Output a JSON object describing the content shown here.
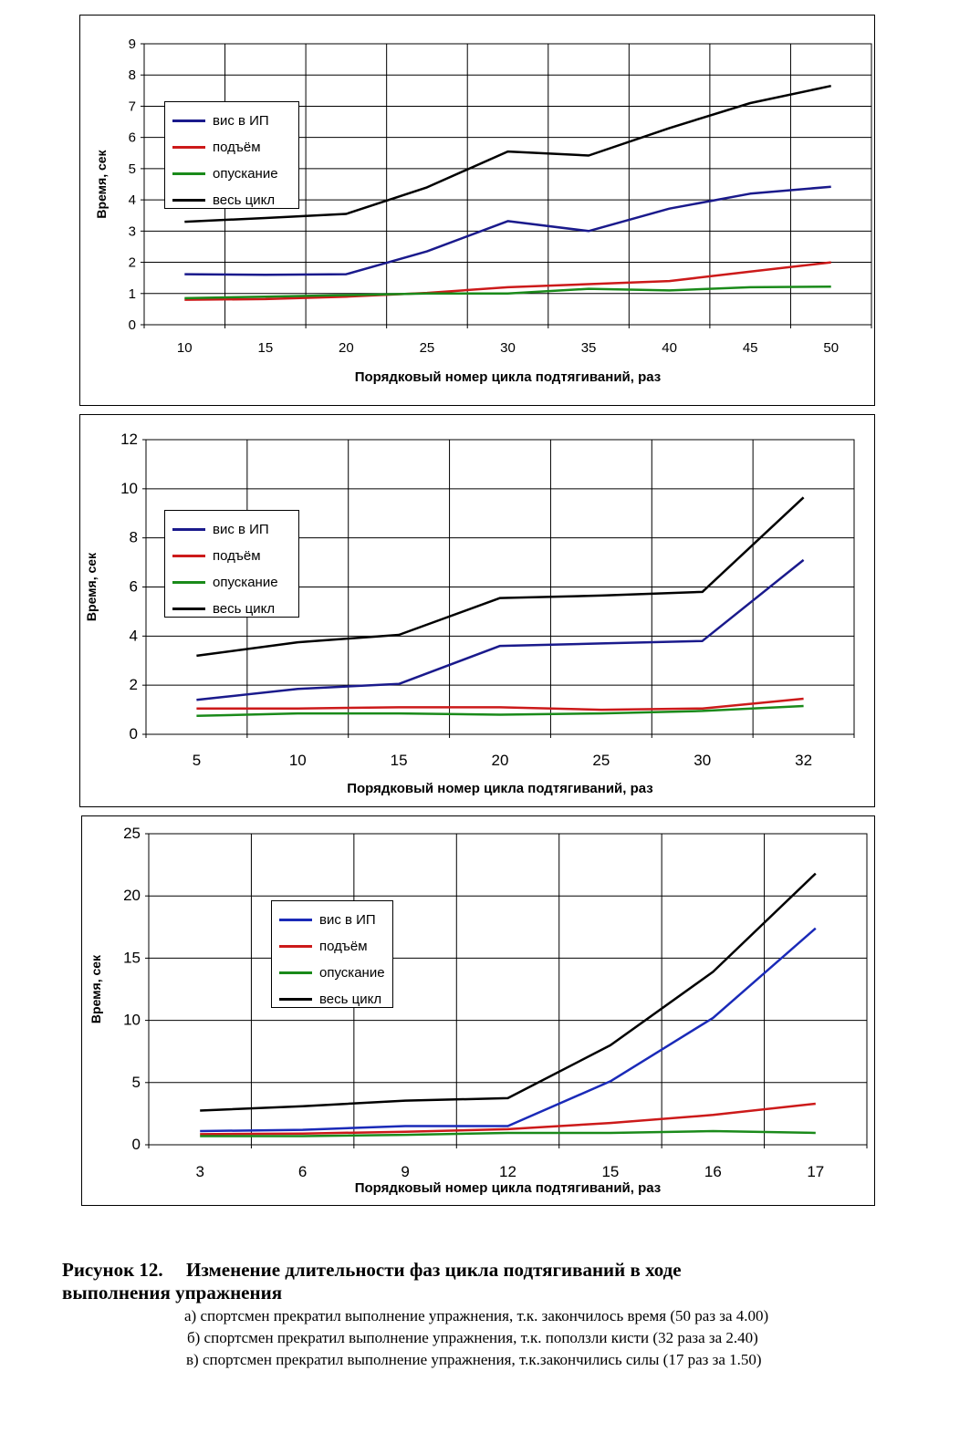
{
  "chart_data": [
    {
      "type": "line",
      "xlabel": "Порядковый номер цикла подтягиваний, раз",
      "ylabel": "Время, сек",
      "categories": [
        "10",
        "15",
        "20",
        "25",
        "30",
        "35",
        "40",
        "45",
        "50"
      ],
      "yticks": [
        "0",
        "1",
        "2",
        "3",
        "4",
        "5",
        "6",
        "7",
        "8",
        "9"
      ],
      "ylim": [
        0,
        9
      ],
      "grid": true,
      "legend": "top-left",
      "series": [
        {
          "name": "вис в ИП",
          "color": "#1a1a8c",
          "values": [
            1.62,
            1.6,
            1.62,
            2.35,
            3.32,
            3.0,
            3.72,
            4.2,
            4.42
          ]
        },
        {
          "name": "подъём",
          "color": "#cc1a1a",
          "values": [
            0.8,
            0.82,
            0.9,
            1.02,
            1.2,
            1.3,
            1.4,
            1.7,
            2.0
          ]
        },
        {
          "name": "опускание",
          "color": "#1a8a1a",
          "values": [
            0.85,
            0.9,
            0.95,
            1.0,
            1.0,
            1.15,
            1.1,
            1.2,
            1.22
          ]
        },
        {
          "name": "весь цикл",
          "color": "#000000",
          "values": [
            3.3,
            3.42,
            3.55,
            4.4,
            5.55,
            5.42,
            6.3,
            7.1,
            7.65
          ]
        }
      ]
    },
    {
      "type": "line",
      "xlabel": "Порядковый номер цикла подтягиваний, раз",
      "ylabel": "Время, сек",
      "categories": [
        "5",
        "10",
        "15",
        "20",
        "25",
        "30",
        "32"
      ],
      "yticks": [
        "0",
        "2",
        "4",
        "6",
        "8",
        "10",
        "12"
      ],
      "ylim": [
        0,
        12
      ],
      "grid": true,
      "legend": "top-left",
      "series": [
        {
          "name": "вис в ИП",
          "color": "#1a1a8c",
          "values": [
            1.4,
            1.85,
            2.05,
            3.6,
            3.7,
            3.8,
            7.1
          ]
        },
        {
          "name": "подъём",
          "color": "#cc1a1a",
          "values": [
            1.05,
            1.05,
            1.1,
            1.1,
            1.0,
            1.05,
            1.45
          ]
        },
        {
          "name": "опускание",
          "color": "#1a8a1a",
          "values": [
            0.75,
            0.85,
            0.85,
            0.8,
            0.85,
            0.95,
            1.15
          ]
        },
        {
          "name": "весь цикл",
          "color": "#000000",
          "values": [
            3.2,
            3.75,
            4.05,
            5.55,
            5.65,
            5.8,
            9.65
          ]
        }
      ]
    },
    {
      "type": "line",
      "xlabel": "Порядковый номер цикла подтягиваний, раз",
      "ylabel": "Время, сек",
      "categories": [
        "3",
        "6",
        "9",
        "12",
        "15",
        "16",
        "17"
      ],
      "yticks": [
        "0",
        "5",
        "10",
        "15",
        "20",
        "25"
      ],
      "ylim": [
        0,
        25
      ],
      "grid": true,
      "legend": "top-left",
      "series": [
        {
          "name": "вис в ИП",
          "color": "#1a2ab8",
          "values": [
            1.1,
            1.2,
            1.5,
            1.5,
            5.1,
            10.2,
            17.4
          ]
        },
        {
          "name": "подъём",
          "color": "#cc1a1a",
          "values": [
            0.85,
            0.9,
            1.05,
            1.25,
            1.75,
            2.4,
            3.3
          ]
        },
        {
          "name": "опускание",
          "color": "#1a8a1a",
          "values": [
            0.7,
            0.7,
            0.8,
            0.95,
            0.95,
            1.1,
            0.95
          ]
        },
        {
          "name": "весь цикл",
          "color": "#000000",
          "values": [
            2.75,
            3.1,
            3.55,
            3.75,
            8.0,
            13.9,
            21.8
          ]
        }
      ]
    }
  ],
  "caption": {
    "figure_number": "Рисунок 12.",
    "title_line1": "Изменение длительности фаз цикла подтягиваний в ходе",
    "title_line2": "выполнения упражнения",
    "notes": [
      "а) спортсмен прекратил выполнение упражнения, т.к. закончилось время (50 раз за 4.00)",
      "б) спортсмен прекратил выполнение упражнения, т.к. поползли кисти (32 раза за 2.40)",
      "в) спортсмен прекратил выполнение упражнения, т.к.закончились силы (17 раз за 1.50)"
    ]
  }
}
